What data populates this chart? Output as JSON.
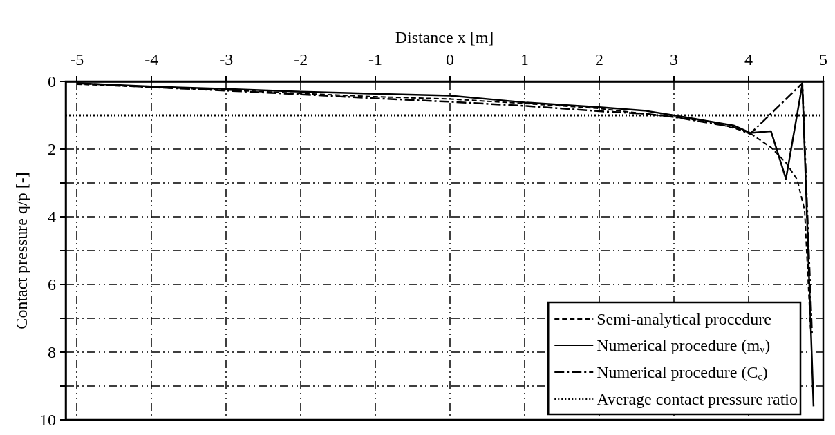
{
  "chart_data": {
    "type": "line",
    "xlabel": "Distance x [m]",
    "ylabel": "Contact pressure q/p [-]",
    "xlim": [
      -5.15,
      5
    ],
    "xticks": [
      -5,
      -4,
      -3,
      -2,
      -1,
      0,
      1,
      2,
      3,
      4,
      5
    ],
    "ylim": [
      10,
      0
    ],
    "yticks": [
      0,
      2,
      {
        "value": 3,
        "label": null
      },
      4,
      {
        "value": 5,
        "label": null
      },
      6,
      {
        "value": 7,
        "label": null
      },
      8,
      {
        "value": 9,
        "label": null
      },
      10
    ],
    "grid": true,
    "legend": "bottom right",
    "marker": "none",
    "series": [
      {
        "name": "Semi-analytical procedure",
        "color": "#000000",
        "line_style": "dashed",
        "x": [
          -5,
          -4,
          -3,
          -2,
          -1,
          0,
          1,
          2,
          3,
          3.5,
          4,
          4.3,
          4.5,
          4.65,
          4.75,
          4.83
        ],
        "values": [
          0.08,
          0.17,
          0.25,
          0.35,
          0.45,
          0.52,
          0.65,
          0.8,
          1.05,
          1.2,
          1.5,
          1.95,
          2.4,
          2.9,
          3.8,
          7.3
        ]
      },
      {
        "name": "Numerical procedure (m$_{v}$)",
        "color": "#000000",
        "line_style": "solid",
        "x": [
          -5,
          -4,
          -3,
          -2,
          -1,
          0,
          1,
          2,
          2.6,
          3,
          3.8,
          4.02,
          4.3,
          4.5,
          4.72,
          4.87
        ],
        "values": [
          0.05,
          0.15,
          0.22,
          0.3,
          0.36,
          0.42,
          0.62,
          0.76,
          0.86,
          1.0,
          1.3,
          1.52,
          1.47,
          2.88,
          0.08,
          9.6
        ]
      },
      {
        "name": "Numerical procedure (C$_{c}$)",
        "color": "#000000",
        "line_style": "dashdot",
        "x": [
          -5,
          -4,
          -3,
          -2,
          -1,
          0,
          1,
          2,
          2.6,
          3,
          3.8,
          4.02,
          4.72,
          4.85
        ],
        "values": [
          0.05,
          0.17,
          0.27,
          0.38,
          0.5,
          0.6,
          0.72,
          0.88,
          0.95,
          1.05,
          1.35,
          1.55,
          0.05,
          7.5
        ]
      },
      {
        "name": "Average contact pressure ratio",
        "color": "#000000",
        "line_style": "dotted",
        "x": [
          -5.15,
          5
        ],
        "values": [
          1,
          1
        ]
      }
    ]
  }
}
